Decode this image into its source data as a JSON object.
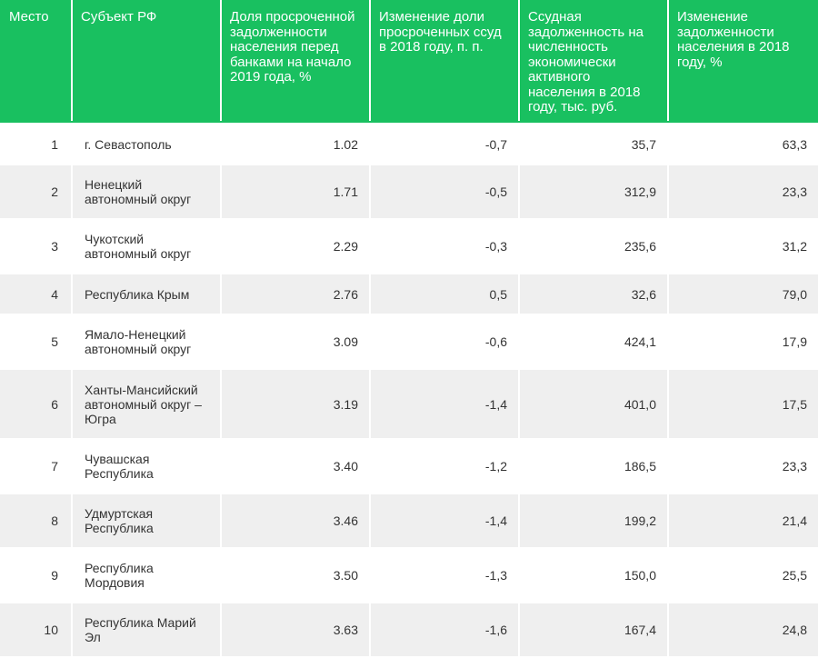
{
  "table": {
    "headers": [
      "Место",
      "Субъект РФ",
      "Доля просроченной задолженности населения перед банками на начало 2019 года, %",
      "Изменение доли просроченных ссуд в 2018 году, п. п.",
      "Ссудная задолженность на численность экономически активного населения в 2018 году, тыс. руб.",
      "Изменение задолженности населения в 2018 году, %"
    ],
    "rows": [
      [
        "1",
        "г. Севастополь",
        "1.02",
        "-0,7",
        "35,7",
        "63,3"
      ],
      [
        "2",
        "Ненецкий автономный округ",
        "1.71",
        "-0,5",
        "312,9",
        "23,3"
      ],
      [
        "3",
        "Чукотский автономный округ",
        "2.29",
        "-0,3",
        "235,6",
        "31,2"
      ],
      [
        "4",
        "Республика Крым",
        "2.76",
        "0,5",
        "32,6",
        "79,0"
      ],
      [
        "5",
        "Ямало-Ненецкий автономный округ",
        "3.09",
        "-0,6",
        "424,1",
        "17,9"
      ],
      [
        "6",
        "Ханты-Мансийский автономный округ – Югра",
        "3.19",
        "-1,4",
        "401,0",
        "17,5"
      ],
      [
        "7",
        "Чувашская Республика",
        "3.40",
        "-1,2",
        "186,5",
        "23,3"
      ],
      [
        "8",
        "Удмуртская Республика",
        "3.46",
        "-1,4",
        "199,2",
        "21,4"
      ],
      [
        "9",
        "Республика Мордовия",
        "3.50",
        "-1,3",
        "150,0",
        "25,5"
      ],
      [
        "10",
        "Республика Марий Эл",
        "3.63",
        "-1,6",
        "167,4",
        "24,8"
      ]
    ]
  },
  "colors": {
    "header_bg": "#19c060",
    "header_text": "#ffffff",
    "row_alt_bg": "#efefef",
    "text": "#333333"
  }
}
